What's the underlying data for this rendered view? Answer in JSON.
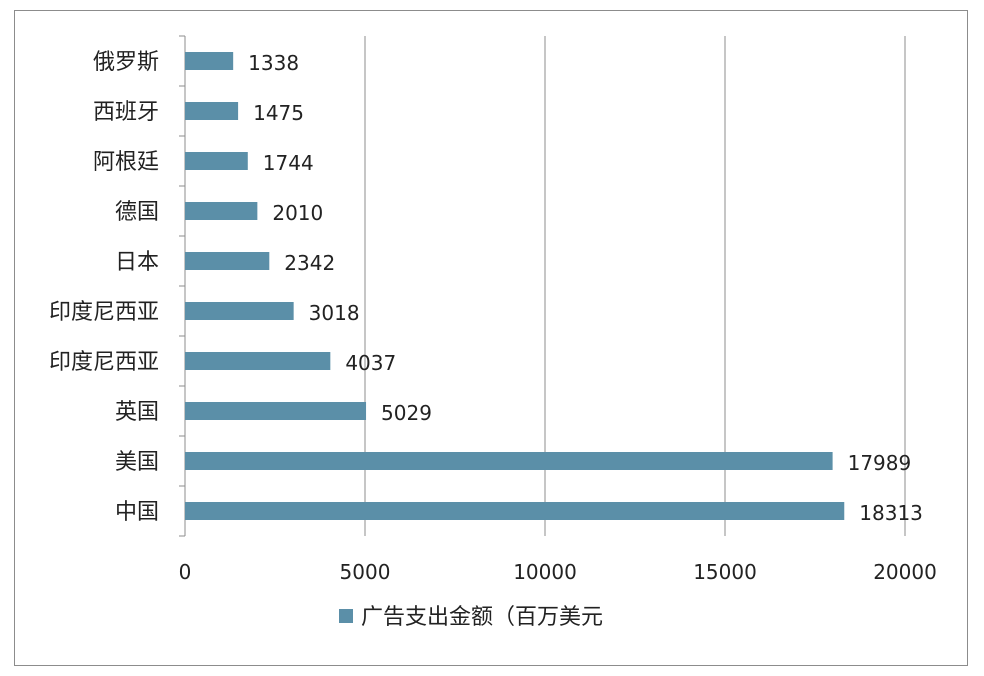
{
  "chart_data": {
    "type": "bar",
    "orientation": "horizontal",
    "categories": [
      "俄罗斯",
      "西班牙",
      "阿根廷",
      "德国",
      "日本",
      "印度尼西亚",
      "印度尼西亚",
      "英国",
      "美国",
      "中国"
    ],
    "series": [
      {
        "name": "广告支出金额（百万美元",
        "values": [
          1338,
          1475,
          1744,
          2010,
          2342,
          3018,
          4037,
          5029,
          17989,
          18313
        ]
      }
    ],
    "xlim": [
      0,
      20000
    ],
    "xticks": [
      0,
      5000,
      10000,
      15000,
      20000
    ],
    "grid": true,
    "legend": "bottom",
    "colors": {
      "bar": "#5b8fa8",
      "grid": "#8c8c8c"
    }
  }
}
